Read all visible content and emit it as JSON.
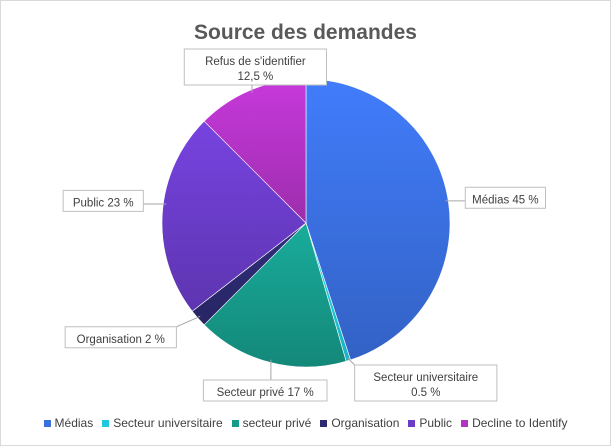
{
  "chart_data": {
    "type": "pie",
    "title": "Source des demandes",
    "slices": [
      {
        "legend": "Médias",
        "value": 45,
        "label_lines": [
          "Médias 45 %"
        ],
        "color": "#3a6fe0"
      },
      {
        "legend": "Secteur universitaire",
        "value": 0.5,
        "label_lines": [
          "Secteur universitaire",
          "0.5 %"
        ],
        "color": "#1fc8dc"
      },
      {
        "legend": "secteur privé",
        "value": 17,
        "label_lines": [
          "Secteur privé 17 %"
        ],
        "color": "#169a8a"
      },
      {
        "legend": "Organisation",
        "value": 2,
        "label_lines": [
          "Organisation 2 %"
        ],
        "color": "#2c2a70"
      },
      {
        "legend": "Public",
        "value": 23,
        "label_lines": [
          "Public 23 %"
        ],
        "color": "#6a3cc8"
      },
      {
        "legend": "Decline to Identify",
        "value": 12.5,
        "label_lines": [
          "Refus de s'identifier",
          "12,5 %"
        ],
        "color": "#b233c4"
      }
    ]
  }
}
